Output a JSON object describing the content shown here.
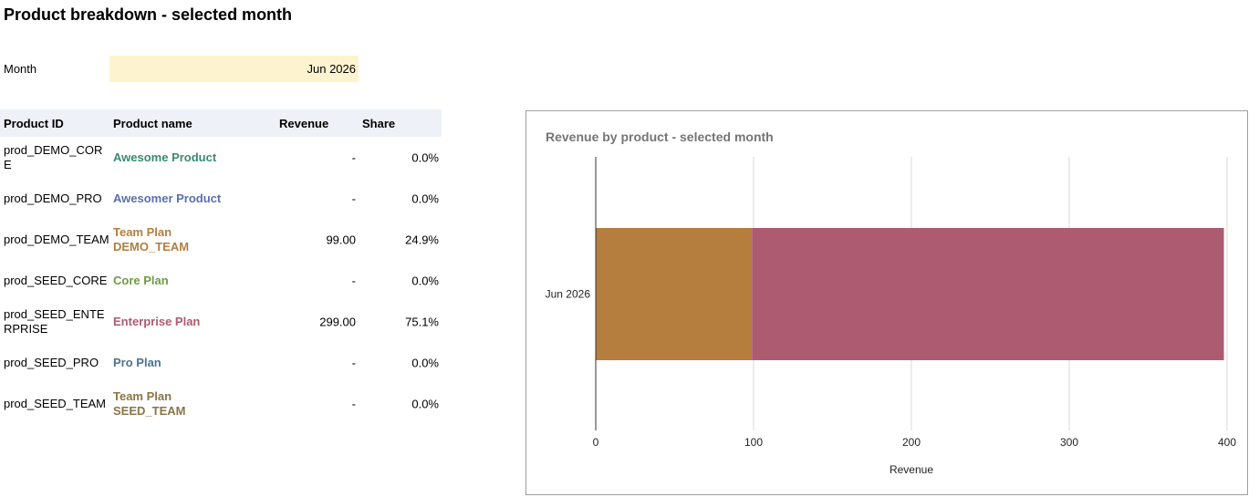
{
  "page": {
    "title": "Product breakdown - selected month"
  },
  "month": {
    "label": "Month",
    "value": "Jun 2026"
  },
  "table": {
    "headers": {
      "id": "Product ID",
      "name": "Product name",
      "revenue": "Revenue",
      "share": "Share"
    },
    "rows": [
      {
        "id": "prod_DEMO_CORE",
        "name_line1": "Awesome Product",
        "name_line2": "",
        "revenue": "-",
        "share": "0.0%",
        "color": "#3a8a73"
      },
      {
        "id": "prod_DEMO_PRO",
        "name_line1": "Awesomer Product",
        "name_line2": "",
        "revenue": "-",
        "share": "0.0%",
        "color": "#5a6fb0"
      },
      {
        "id": "prod_DEMO_TEAM",
        "name_line1": "Team Plan",
        "name_line2": "DEMO_TEAM",
        "revenue": "99.00",
        "share": "24.9%",
        "color": "#b57e3e"
      },
      {
        "id": "prod_SEED_CORE",
        "name_line1": "Core Plan",
        "name_line2": "",
        "revenue": "-",
        "share": "0.0%",
        "color": "#6d9b44"
      },
      {
        "id": "prod_SEED_ENTERPRISE",
        "name_line1": "Enterprise Plan",
        "name_line2": "",
        "revenue": "299.00",
        "share": "75.1%",
        "color": "#ad5b70"
      },
      {
        "id": "prod_SEED_PRO",
        "name_line1": "Pro Plan",
        "name_line2": "",
        "revenue": "-",
        "share": "0.0%",
        "color": "#4d7393"
      },
      {
        "id": "prod_SEED_TEAM",
        "name_line1": "Team Plan",
        "name_line2": "SEED_TEAM",
        "revenue": "-",
        "share": "0.0%",
        "color": "#8a7446"
      }
    ]
  },
  "chart_data": {
    "type": "bar",
    "orientation": "horizontal",
    "stacked": true,
    "title": "Revenue by product - selected month",
    "xlabel": "Revenue",
    "ylabel": "",
    "categories": [
      "Jun 2026"
    ],
    "xlim": [
      0,
      400
    ],
    "xticks": [
      0,
      100,
      200,
      300,
      400
    ],
    "grid": true,
    "series": [
      {
        "values": [
          99
        ],
        "color": "#b57e3e"
      },
      {
        "values": [
          299
        ],
        "color": "#ad5b70"
      }
    ]
  }
}
